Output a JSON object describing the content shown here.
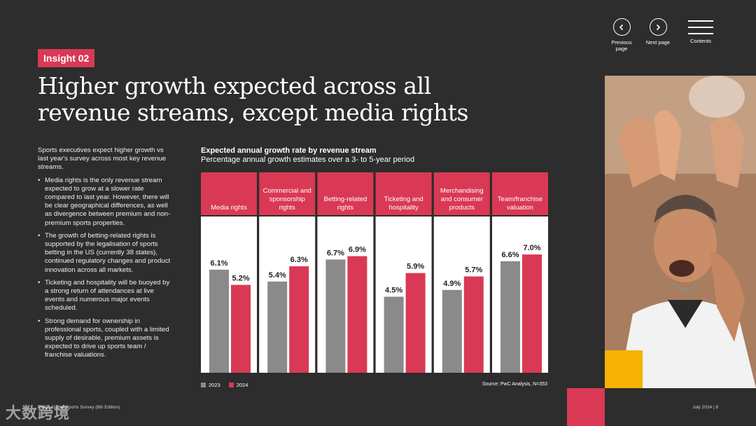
{
  "nav": {
    "previous_label": "Previous page",
    "next_label": "Next page",
    "contents_label": "Contents"
  },
  "insight_tag": "Insight 02",
  "headline": "Higher growth expected across all revenue streams, except media rights",
  "body": {
    "intro": "Sports executives expect higher growth vs last year's survey across most key revenue streams.",
    "bullets": [
      "Media rights is the only revenue stream expected to grow at a slower rate compared to last year. However, there will be clear geographical differences, as well as divergence between premium and non-premium sports properties.",
      "The growth of betting-related rights is supported by the legalisation of sports betting in the US (currently 38 states), continued regulatory changes and product innovation across all markets.",
      "Ticketing and hospitality will be buoyed by a strong return of attendances at live events and numerous major events scheduled.",
      "Strong demand for ownership in professional sports, coupled with a limited supply of desirable, premium assets is expected to drive up sports team / franchise valuations."
    ]
  },
  "chart_data": {
    "type": "bar",
    "title": "Expected annual growth rate by revenue stream",
    "subtitle": "Percentage annual growth estimates over a 3- to 5-year period",
    "categories": [
      "Media rights",
      "Commercial and sponsorship rights",
      "Betting-related rights",
      "Ticketing and hospitality",
      "Merchandising and consumer products",
      "Team/franchise valuation"
    ],
    "series": [
      {
        "name": "2023",
        "color": "#8a8a8a",
        "values": [
          6.1,
          5.4,
          6.7,
          4.5,
          4.9,
          6.6
        ],
        "labels": [
          "6.1%",
          "5.4%",
          "6.7%",
          "4.5%",
          "4.9%",
          "6.6%"
        ]
      },
      {
        "name": "2024",
        "color": "#d93954",
        "values": [
          5.2,
          6.3,
          6.9,
          5.9,
          5.7,
          7.0
        ],
        "labels": [
          "5.2%",
          "6.3%",
          "6.9%",
          "5.9%",
          "5.7%",
          "7.0%"
        ]
      }
    ],
    "ylim": [
      0,
      8.5
    ],
    "grid": false,
    "legend_position": "bottom-left",
    "source": "Source: PwC Analysis, N=353",
    "header_color": "#d93954"
  },
  "footer": {
    "left": "PwC | Global Sports Survey (8th Edition)",
    "right": "July 2024 | 8",
    "watermark": "大数跨境"
  },
  "colors": {
    "background": "#2d2d2d",
    "accent": "#d93954",
    "yellow": "#f6b200",
    "grey_bar": "#8a8a8a"
  }
}
